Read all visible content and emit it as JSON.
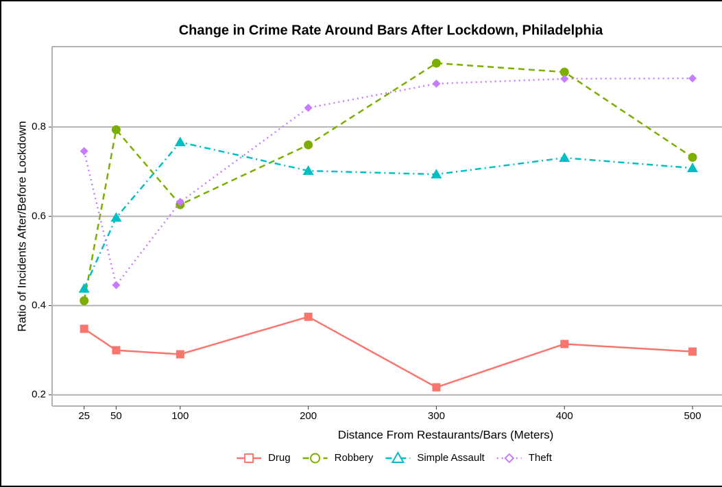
{
  "chart_data": {
    "type": "line",
    "title": "Change in Crime Rate Around Bars After Lockdown, Philadelphia",
    "x_label": "Distance From Restaurants/Bars (Meters)",
    "y_label": "Ratio of Incidents After/Before Lockdown",
    "x": [
      25,
      50,
      100,
      200,
      300,
      400,
      500
    ],
    "series": [
      {
        "name": "Drug",
        "color": "#f8766d",
        "dash": "solid",
        "marker": "square",
        "values": [
          0.348,
          0.3,
          0.291,
          0.375,
          0.217,
          0.314,
          0.297
        ]
      },
      {
        "name": "Robbery",
        "color": "#7cae00",
        "dash": "dashed",
        "marker": "circle",
        "values": [
          0.411,
          0.794,
          0.626,
          0.76,
          0.943,
          0.923,
          0.732
        ]
      },
      {
        "name": "Simple Assault",
        "color": "#00bfc4",
        "dash": "dotdash",
        "marker": "triangle",
        "values": [
          0.438,
          0.597,
          0.766,
          0.702,
          0.694,
          0.731,
          0.708
        ]
      },
      {
        "name": "Theft",
        "color": "#c77cff",
        "dash": "dotted",
        "marker": "diamond",
        "values": [
          0.746,
          0.446,
          0.632,
          0.843,
          0.897,
          0.908,
          0.909
        ]
      }
    ],
    "xlim": [
      0,
      523
    ],
    "ylim": [
      0.175,
      0.98
    ],
    "xticks": [
      25,
      50,
      100,
      200,
      300,
      400,
      500
    ],
    "yticks": [
      0.2,
      0.4,
      0.6,
      0.8
    ],
    "grid": true,
    "legend": "bottom"
  }
}
